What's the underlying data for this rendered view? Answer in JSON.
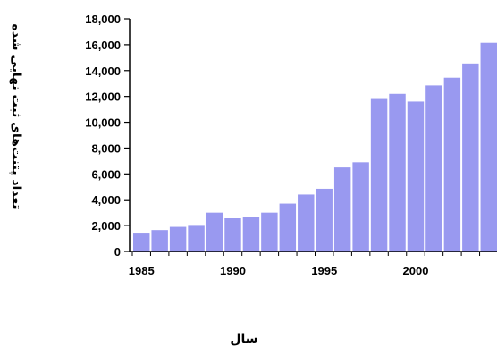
{
  "chart_data": {
    "type": "bar",
    "title": "",
    "xlabel": "سال",
    "ylabel": "تعداد پتنت‌های ثبت نهایی شده",
    "ylim": [
      0,
      18000
    ],
    "yticks": [
      0,
      2000,
      4000,
      6000,
      8000,
      10000,
      12000,
      14000,
      16000,
      18000
    ],
    "ytick_labels": [
      "0",
      "2,000",
      "4,000",
      "6,000",
      "8,000",
      "10,000",
      "12,000",
      "14,000",
      "16,000",
      "18,000"
    ],
    "xtick_labels": [
      "1985",
      "1990",
      "1995",
      "2000"
    ],
    "categories": [
      "1985",
      "1986",
      "1987",
      "1988",
      "1989",
      "1990",
      "1991",
      "1992",
      "1993",
      "1994",
      "1995",
      "1996",
      "1997",
      "1998",
      "1999",
      "2000",
      "2001",
      "2002",
      "2003",
      "2004"
    ],
    "values": [
      1450,
      1650,
      1900,
      2050,
      3000,
      2600,
      2700,
      3000,
      3700,
      4400,
      4850,
      6500,
      6900,
      11800,
      12200,
      11600,
      12850,
      13450,
      14550,
      16150
    ],
    "bar_color": "#9999f0",
    "grid": false,
    "legend": "none"
  }
}
